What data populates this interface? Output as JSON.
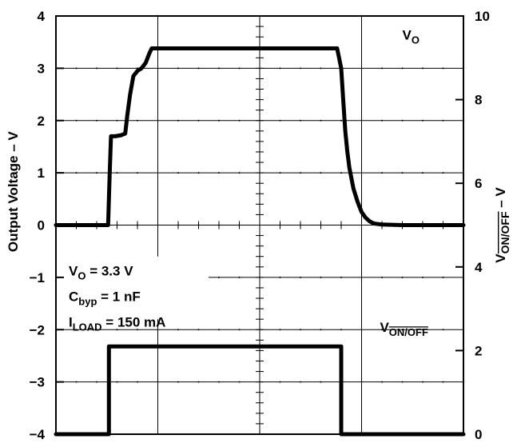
{
  "chart_data": {
    "type": "line",
    "title": "",
    "xlabel": "",
    "ylabel_left": "Output Voltage – V",
    "ylabel_right": "VON/OFF – V",
    "ylabel_right_parts": {
      "main": "V",
      "sub": "ON/OFF",
      "suffix": " – V"
    },
    "ylim_left": [
      -4,
      4
    ],
    "ylim_right": [
      0,
      10
    ],
    "xlim": [
      0,
      10
    ],
    "left_ticks": [
      "4",
      "3",
      "2",
      "1",
      "0",
      "−1",
      "−2",
      "−3",
      "−4"
    ],
    "left_tick_values": [
      4,
      3,
      2,
      1,
      0,
      -1,
      -2,
      -3,
      -4
    ],
    "right_ticks": [
      "10",
      "8",
      "6",
      "4",
      "2",
      "0"
    ],
    "right_tick_values": [
      10,
      8,
      6,
      4,
      2,
      0
    ],
    "grid": "dashed",
    "series": [
      {
        "name": "VO",
        "label_main": "V",
        "label_sub": "O",
        "axis": "left",
        "x": [
          0.0,
          1.28,
          1.32,
          1.35,
          1.45,
          1.6,
          1.7,
          1.75,
          1.82,
          1.9,
          2.0,
          2.1,
          2.2,
          2.3,
          2.35,
          2.5,
          3.0,
          4.0,
          5.0,
          6.0,
          6.5,
          6.9,
          7.0,
          7.05,
          7.1,
          7.15,
          7.2,
          7.3,
          7.4,
          7.5,
          7.6,
          7.7,
          7.8,
          8.0,
          8.5,
          9.0,
          10.0
        ],
        "y": [
          0.0,
          0.0,
          1.0,
          1.7,
          1.7,
          1.72,
          1.75,
          2.1,
          2.5,
          2.85,
          2.95,
          3.0,
          3.1,
          3.3,
          3.38,
          3.38,
          3.38,
          3.38,
          3.38,
          3.38,
          3.38,
          3.38,
          3.0,
          2.4,
          1.8,
          1.4,
          1.1,
          0.7,
          0.45,
          0.25,
          0.14,
          0.07,
          0.03,
          0.01,
          0.0,
          0.0,
          0.0
        ]
      },
      {
        "name": "VON/OFF",
        "label_main": "V",
        "label_sub": "ON/OFF",
        "axis": "right",
        "x": [
          0.0,
          1.3,
          1.3,
          7.0,
          7.0,
          10.0
        ],
        "y": [
          0.0,
          0.0,
          2.1,
          2.1,
          0.0,
          0.0
        ]
      }
    ],
    "annotations": [
      {
        "main": "V",
        "sub": "O",
        "rest": " = 3.3 V"
      },
      {
        "main": "C",
        "sub": "byp",
        "rest": " = 1 nF"
      },
      {
        "main": "I",
        "sub": "LOAD",
        "rest": " = 150 mA"
      }
    ]
  }
}
